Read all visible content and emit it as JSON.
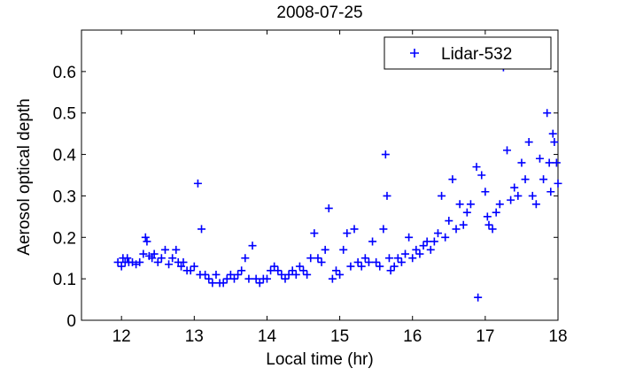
{
  "chart_data": {
    "type": "scatter",
    "title": "2008-07-25",
    "x_label": "Local time (hr)",
    "y_label": "Aerosol optical depth",
    "xlim": [
      11.45,
      18
    ],
    "ylim": [
      0,
      0.7
    ],
    "xticks": [
      12,
      13,
      14,
      15,
      16,
      17,
      18
    ],
    "yticks": [
      0,
      0.1,
      0.2,
      0.3,
      0.4,
      0.5,
      0.6
    ],
    "legend": "upper right",
    "series": [
      {
        "name": "Lidar-532",
        "color": "#0000ff",
        "marker": "+",
        "x": [
          11.95,
          12.0,
          12.02,
          12.05,
          12.08,
          12.1,
          12.15,
          12.2,
          12.25,
          12.3,
          12.33,
          12.35,
          12.38,
          12.42,
          12.45,
          12.5,
          12.55,
          12.6,
          12.65,
          12.7,
          12.75,
          12.78,
          12.82,
          12.85,
          12.9,
          12.95,
          13.0,
          13.05,
          13.08,
          13.1,
          13.15,
          13.2,
          13.25,
          13.3,
          13.35,
          13.4,
          13.45,
          13.5,
          13.55,
          13.6,
          13.65,
          13.7,
          13.75,
          13.8,
          13.85,
          13.9,
          13.95,
          14.0,
          14.05,
          14.1,
          14.15,
          14.2,
          14.25,
          14.3,
          14.35,
          14.4,
          14.45,
          14.5,
          14.55,
          14.6,
          14.65,
          14.7,
          14.75,
          14.8,
          14.85,
          14.9,
          14.95,
          15.0,
          15.05,
          15.1,
          15.15,
          15.2,
          15.25,
          15.3,
          15.35,
          15.4,
          15.45,
          15.5,
          15.55,
          15.6,
          15.63,
          15.65,
          15.68,
          15.7,
          15.75,
          15.8,
          15.85,
          15.9,
          15.95,
          16.0,
          16.05,
          16.1,
          16.15,
          16.2,
          16.25,
          16.3,
          16.35,
          16.4,
          16.45,
          16.5,
          16.55,
          16.6,
          16.65,
          16.7,
          16.75,
          16.8,
          16.88,
          16.9,
          16.95,
          17.0,
          17.03,
          17.05,
          17.1,
          17.15,
          17.2,
          17.25,
          17.3,
          17.35,
          17.4,
          17.45,
          17.5,
          17.55,
          17.6,
          17.65,
          17.7,
          17.75,
          17.8,
          17.85,
          17.88,
          17.9,
          17.93,
          17.95,
          17.98,
          18.0
        ],
        "values": [
          0.14,
          0.13,
          0.15,
          0.14,
          0.15,
          0.14,
          0.14,
          0.135,
          0.14,
          0.16,
          0.2,
          0.19,
          0.155,
          0.15,
          0.16,
          0.14,
          0.15,
          0.17,
          0.135,
          0.15,
          0.17,
          0.14,
          0.13,
          0.14,
          0.12,
          0.12,
          0.13,
          0.33,
          0.11,
          0.22,
          0.11,
          0.1,
          0.09,
          0.11,
          0.09,
          0.09,
          0.1,
          0.11,
          0.1,
          0.11,
          0.12,
          0.15,
          0.1,
          0.18,
          0.1,
          0.09,
          0.1,
          0.1,
          0.12,
          0.13,
          0.12,
          0.11,
          0.1,
          0.11,
          0.12,
          0.11,
          0.13,
          0.12,
          0.11,
          0.15,
          0.21,
          0.15,
          0.14,
          0.17,
          0.27,
          0.1,
          0.12,
          0.11,
          0.17,
          0.21,
          0.13,
          0.22,
          0.14,
          0.13,
          0.15,
          0.14,
          0.19,
          0.14,
          0.13,
          0.22,
          0.4,
          0.3,
          0.15,
          0.12,
          0.13,
          0.15,
          0.14,
          0.16,
          0.2,
          0.15,
          0.17,
          0.16,
          0.18,
          0.19,
          0.17,
          0.19,
          0.21,
          0.3,
          0.2,
          0.24,
          0.34,
          0.22,
          0.28,
          0.23,
          0.26,
          0.28,
          0.37,
          0.055,
          0.35,
          0.31,
          0.25,
          0.23,
          0.22,
          0.26,
          0.28,
          0.61,
          0.41,
          0.29,
          0.32,
          0.3,
          0.38,
          0.34,
          0.43,
          0.3,
          0.28,
          0.39,
          0.34,
          0.5,
          0.38,
          0.31,
          0.45,
          0.43,
          0.38,
          0.33
        ]
      }
    ]
  }
}
